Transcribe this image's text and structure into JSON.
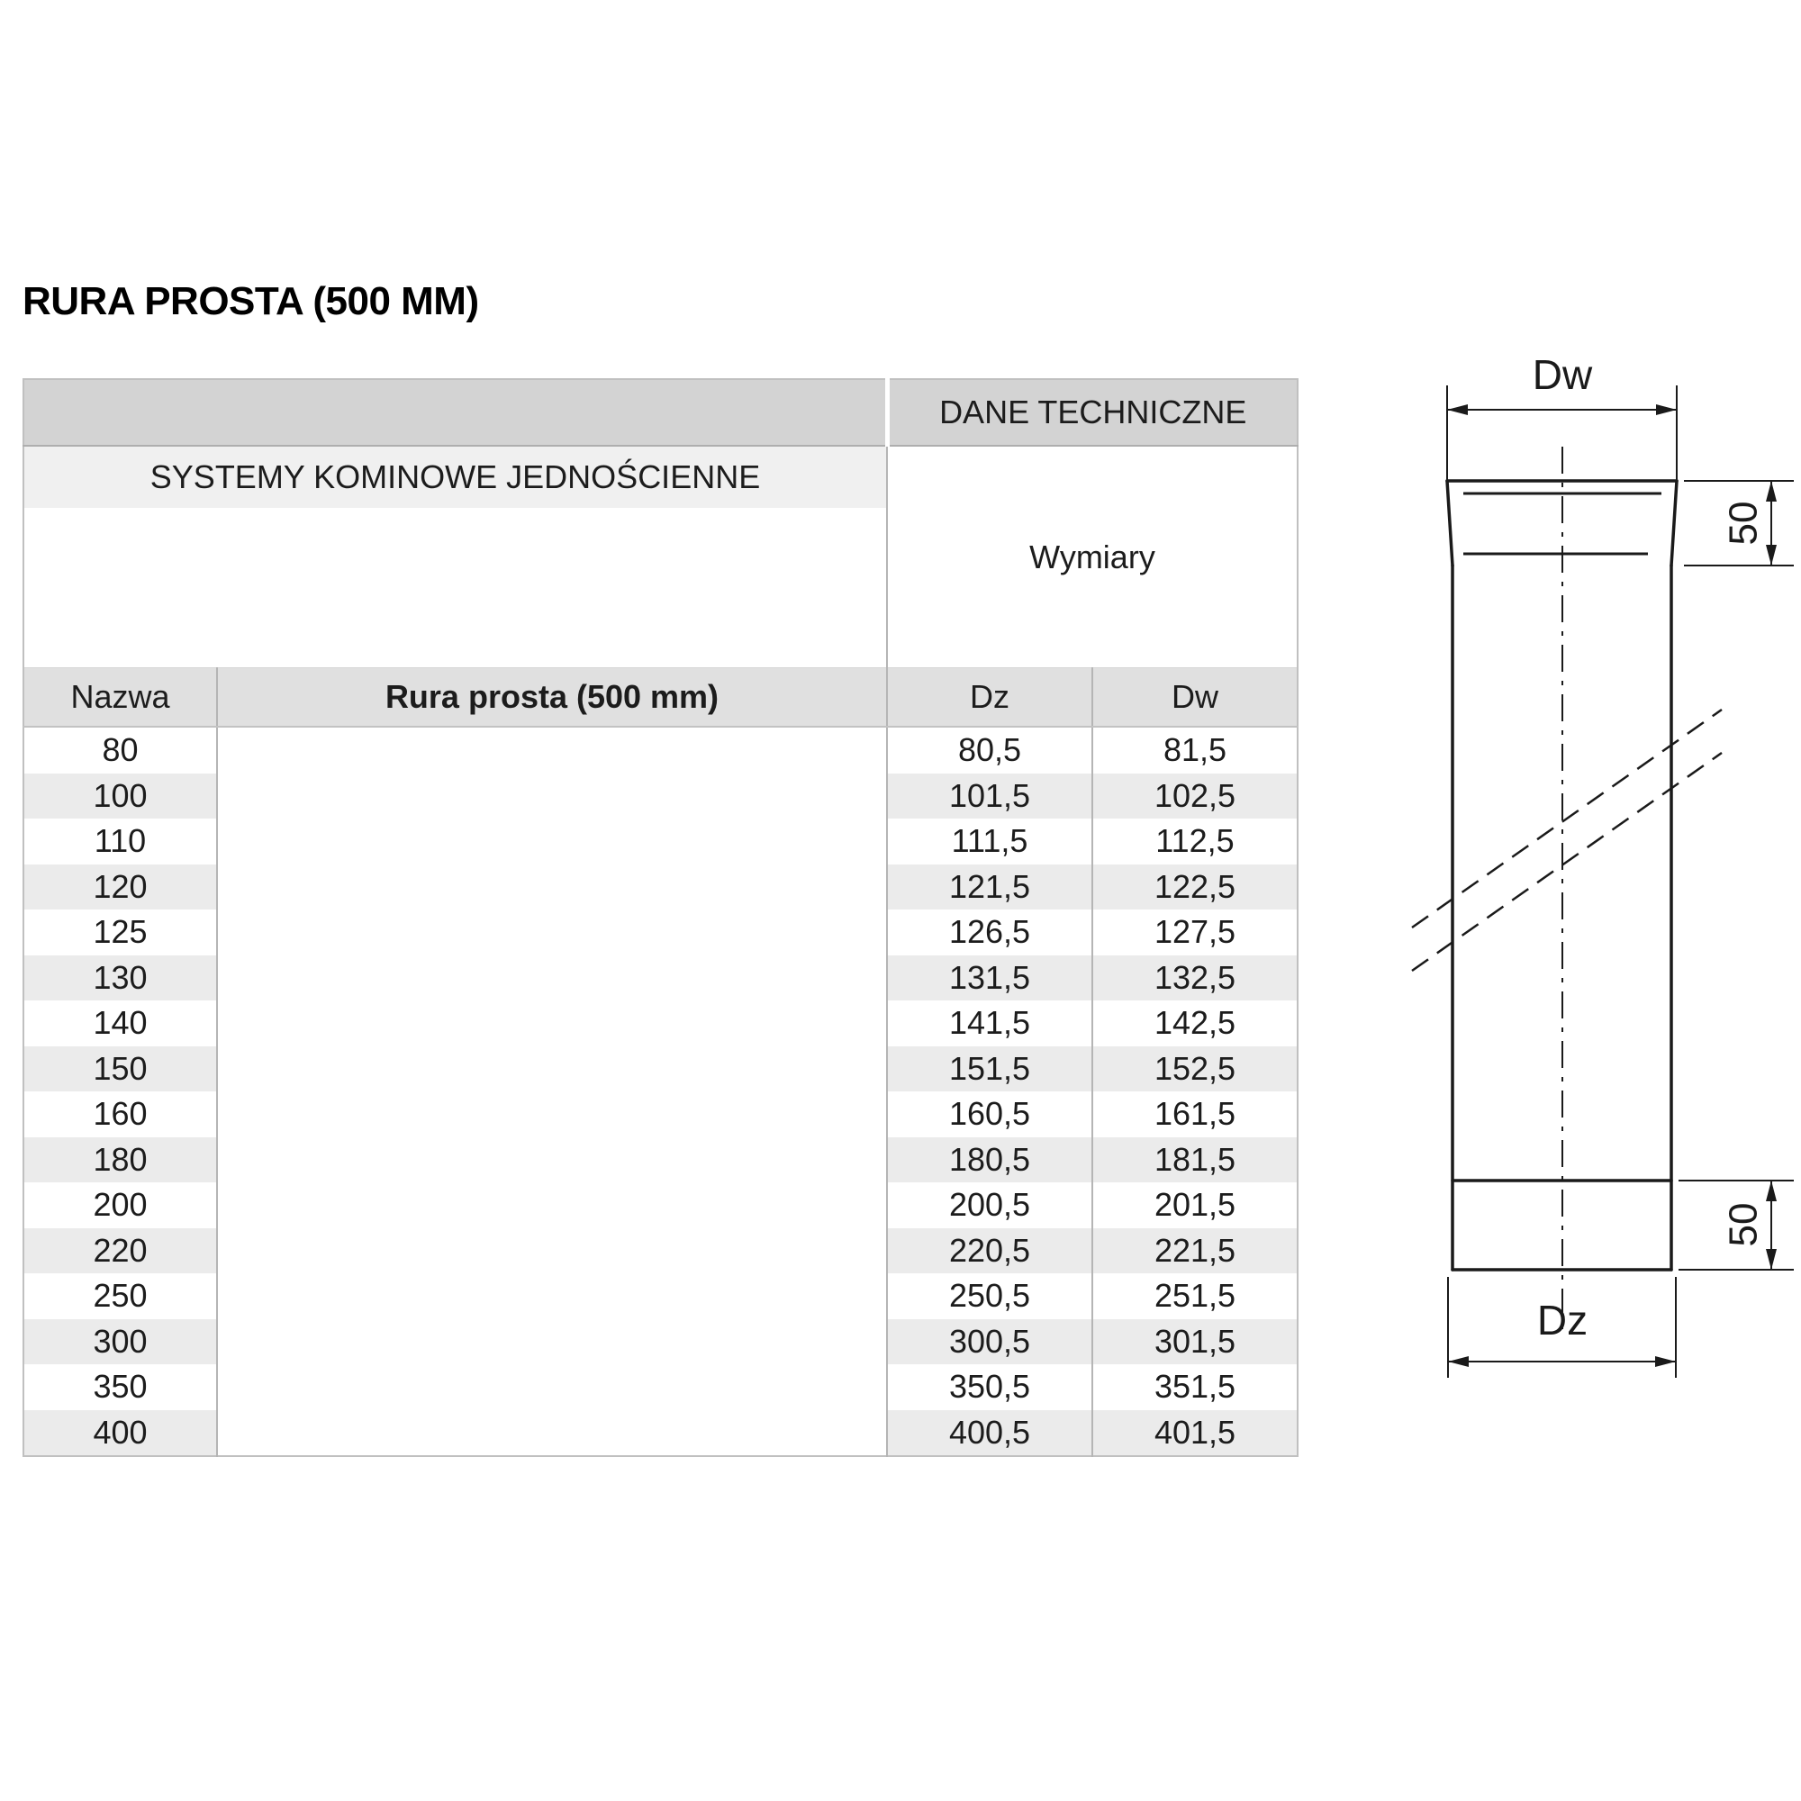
{
  "page": {
    "title": "RURA PROSTA (500 MM)"
  },
  "table": {
    "banner_right": "DANE TECHNICZNE",
    "system_header": "SYSTEMY KOMINOWE JEDNOŚCIENNE",
    "dimensions_header": "Wymiary",
    "columns": [
      "Nazwa",
      "Rura prosta (500 mm)",
      "Dz",
      "Dw"
    ],
    "rows": [
      {
        "name": "80",
        "dz": "80,5",
        "dw": "81,5"
      },
      {
        "name": "100",
        "dz": "101,5",
        "dw": "102,5"
      },
      {
        "name": "110",
        "dz": "111,5",
        "dw": "112,5"
      },
      {
        "name": "120",
        "dz": "121,5",
        "dw": "122,5"
      },
      {
        "name": "125",
        "dz": "126,5",
        "dw": "127,5"
      },
      {
        "name": "130",
        "dz": "131,5",
        "dw": "132,5"
      },
      {
        "name": "140",
        "dz": "141,5",
        "dw": "142,5"
      },
      {
        "name": "150",
        "dz": "151,5",
        "dw": "152,5"
      },
      {
        "name": "160",
        "dz": "160,5",
        "dw": "161,5"
      },
      {
        "name": "180",
        "dz": "180,5",
        "dw": "181,5"
      },
      {
        "name": "200",
        "dz": "200,5",
        "dw": "201,5"
      },
      {
        "name": "220",
        "dz": "220,5",
        "dw": "221,5"
      },
      {
        "name": "250",
        "dz": "250,5",
        "dw": "251,5"
      },
      {
        "name": "300",
        "dz": "300,5",
        "dw": "301,5"
      },
      {
        "name": "350",
        "dz": "350,5",
        "dw": "351,5"
      },
      {
        "name": "400",
        "dz": "400,5",
        "dw": "401,5"
      }
    ]
  },
  "drawing": {
    "dw_label": "Dw",
    "dz_label": "Dz",
    "socket_height_label": "50",
    "base_height_label": "50"
  },
  "colors": {
    "banner_bg": "#d3d3d3",
    "subheader_bg": "#f0f0f0",
    "column_header_bg": "#e0e0e0",
    "stripe_bg": "#ebebeb",
    "border": "#b5b5b5",
    "line": "#1a1a1a",
    "text": "#1c1c1c"
  }
}
